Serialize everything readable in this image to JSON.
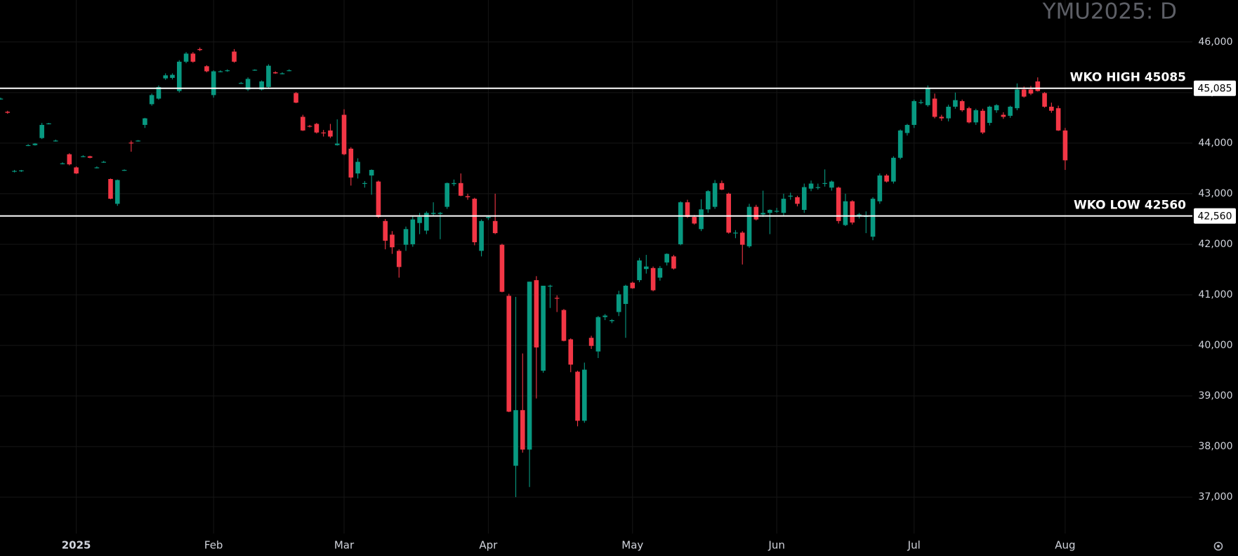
{
  "chart_data": {
    "type": "candlestick",
    "title": "YMU2025: D",
    "up_color": "#089981",
    "down_color": "#f23645",
    "grid": true,
    "ylim": [
      36280,
      46830
    ],
    "yticks": [
      {
        "value": 37000,
        "label": "37,000"
      },
      {
        "value": 38000,
        "label": "38,000"
      },
      {
        "value": 39000,
        "label": "39,000"
      },
      {
        "value": 40000,
        "label": "40,000"
      },
      {
        "value": 41000,
        "label": "41,000"
      },
      {
        "value": 42000,
        "label": "42,000"
      },
      {
        "value": 43000,
        "label": "43,000"
      },
      {
        "value": 44000,
        "label": "44,000"
      },
      {
        "value": 45000,
        "label": "45,000"
      },
      {
        "value": 46000,
        "label": "46,000"
      }
    ],
    "hlines": [
      {
        "label": "WKO HIGH 45085",
        "value": 45085,
        "tag": "45,085"
      },
      {
        "label": "WKO LOW 42560",
        "value": 42560,
        "tag": "42,560"
      }
    ],
    "categories": [
      null,
      null,
      null,
      null,
      null,
      null,
      null,
      null,
      null,
      null,
      null,
      "2025",
      null,
      null,
      null,
      null,
      null,
      null,
      null,
      null,
      null,
      null,
      null,
      null,
      null,
      null,
      null,
      null,
      null,
      null,
      null,
      "Feb",
      null,
      null,
      null,
      null,
      null,
      null,
      null,
      null,
      null,
      null,
      null,
      null,
      null,
      null,
      null,
      null,
      null,
      null,
      "Mar",
      null,
      null,
      null,
      null,
      null,
      null,
      null,
      null,
      null,
      null,
      null,
      null,
      null,
      null,
      null,
      null,
      null,
      null,
      null,
      null,
      "Apr",
      null,
      null,
      null,
      null,
      null,
      null,
      null,
      null,
      null,
      null,
      null,
      null,
      null,
      null,
      null,
      null,
      null,
      null,
      null,
      null,
      "May",
      null,
      null,
      null,
      null,
      null,
      null,
      null,
      null,
      null,
      null,
      null,
      null,
      null,
      null,
      null,
      null,
      null,
      null,
      null,
      null,
      "Jun",
      null,
      null,
      null,
      null,
      null,
      null,
      null,
      null,
      null,
      null,
      null,
      null,
      null,
      null,
      null,
      null,
      null,
      null,
      null,
      "Jul",
      null,
      null,
      null,
      null,
      null,
      null,
      null,
      null,
      null,
      null,
      null,
      null,
      null,
      null,
      null,
      null,
      null,
      null,
      null,
      null,
      null,
      "Aug"
    ],
    "ohlc": [
      [
        44880,
        44900,
        44860,
        44880
      ],
      [
        44620,
        44640,
        44580,
        44600
      ],
      [
        43440,
        43470,
        43420,
        43450
      ],
      [
        43450,
        43470,
        43430,
        43460
      ],
      [
        43950,
        43980,
        43940,
        43960
      ],
      [
        43960,
        44000,
        43950,
        43990
      ],
      [
        44100,
        44400,
        44080,
        44360
      ],
      [
        44380,
        44400,
        44370,
        44390
      ],
      [
        44050,
        44070,
        44030,
        44050
      ],
      [
        43600,
        43620,
        43580,
        43600
      ],
      [
        43780,
        43800,
        43560,
        43580
      ],
      [
        43520,
        43540,
        43390,
        43400
      ],
      [
        43740,
        43760,
        43720,
        43740
      ],
      [
        43740,
        43750,
        43700,
        43710
      ],
      [
        43520,
        43540,
        43500,
        43520
      ],
      [
        43620,
        43650,
        43610,
        43630
      ],
      [
        43290,
        43300,
        42890,
        42900
      ],
      [
        42800,
        43280,
        42760,
        43270
      ],
      [
        43460,
        43480,
        43450,
        43470
      ],
      [
        44010,
        44050,
        43830,
        44000
      ],
      [
        44040,
        44060,
        44030,
        44050
      ],
      [
        44360,
        44500,
        44300,
        44490
      ],
      [
        44770,
        44980,
        44740,
        44950
      ],
      [
        44880,
        45140,
        44860,
        45110
      ],
      [
        45280,
        45380,
        45250,
        45340
      ],
      [
        45290,
        45380,
        45260,
        45350
      ],
      [
        45030,
        45640,
        45000,
        45610
      ],
      [
        45610,
        45800,
        45580,
        45770
      ],
      [
        45770,
        45800,
        45590,
        45610
      ],
      [
        45860,
        45890,
        45820,
        45840
      ],
      [
        45520,
        45540,
        45400,
        45420
      ],
      [
        44950,
        45440,
        44900,
        45420
      ],
      [
        45420,
        45440,
        45400,
        45420
      ],
      [
        45430,
        45460,
        45410,
        45440
      ],
      [
        45810,
        45860,
        45590,
        45610
      ],
      [
        45190,
        45210,
        45170,
        45190
      ],
      [
        45060,
        45300,
        45030,
        45270
      ],
      [
        45440,
        45460,
        45430,
        45450
      ],
      [
        45060,
        45240,
        45040,
        45220
      ],
      [
        45110,
        45560,
        45080,
        45530
      ],
      [
        45400,
        45420,
        45370,
        45380
      ],
      [
        45380,
        45400,
        45360,
        45380
      ],
      [
        45440,
        45460,
        45420,
        45440
      ],
      [
        44990,
        45010,
        44790,
        44800
      ],
      [
        44520,
        44560,
        44240,
        44250
      ],
      [
        44340,
        44360,
        44310,
        44330
      ],
      [
        44380,
        44400,
        44190,
        44210
      ],
      [
        44210,
        44260,
        44130,
        44200
      ],
      [
        44250,
        44380,
        44100,
        44130
      ],
      [
        43960,
        44470,
        43950,
        43990
      ],
      [
        44560,
        44670,
        43760,
        43780
      ],
      [
        43890,
        43920,
        43160,
        43320
      ],
      [
        43400,
        43700,
        43300,
        43630
      ],
      [
        43200,
        43250,
        43120,
        43210
      ],
      [
        43360,
        43480,
        42980,
        43470
      ],
      [
        43240,
        43260,
        42520,
        42540
      ],
      [
        42460,
        42500,
        41900,
        42070
      ],
      [
        42190,
        42260,
        41810,
        41940
      ],
      [
        41870,
        41900,
        41340,
        41550
      ],
      [
        41990,
        42350,
        41870,
        42300
      ],
      [
        42000,
        42560,
        41950,
        42490
      ],
      [
        42420,
        42620,
        42200,
        42540
      ],
      [
        42270,
        42650,
        42200,
        42620
      ],
      [
        42600,
        42830,
        42560,
        42620
      ],
      [
        42600,
        42640,
        42100,
        42620
      ],
      [
        42740,
        43220,
        42700,
        43210
      ],
      [
        43190,
        43280,
        43150,
        43210
      ],
      [
        43210,
        43400,
        42950,
        42960
      ],
      [
        42950,
        43000,
        42880,
        42930
      ],
      [
        42900,
        42920,
        41980,
        42040
      ],
      [
        41870,
        42490,
        41760,
        42460
      ],
      [
        42520,
        42560,
        42480,
        42540
      ],
      [
        42460,
        43000,
        42200,
        42220
      ],
      [
        41990,
        42010,
        41050,
        41060
      ],
      [
        40980,
        41020,
        38680,
        38690
      ],
      [
        37620,
        40960,
        37000,
        38720
      ],
      [
        38720,
        39840,
        37880,
        37940
      ],
      [
        37940,
        41260,
        37200,
        41260
      ],
      [
        41290,
        41370,
        38950,
        39960
      ],
      [
        39500,
        41180,
        39460,
        41180
      ],
      [
        41180,
        41200,
        40740,
        41180
      ],
      [
        40940,
        40990,
        40660,
        40930
      ],
      [
        40700,
        40720,
        40080,
        40090
      ],
      [
        40120,
        40140,
        39470,
        39620
      ],
      [
        39480,
        39500,
        38400,
        38510
      ],
      [
        38510,
        39660,
        38470,
        39520
      ],
      [
        40150,
        40190,
        39930,
        39990
      ],
      [
        39880,
        40580,
        39750,
        40560
      ],
      [
        40560,
        40620,
        40500,
        40590
      ],
      [
        40480,
        40520,
        40440,
        40500
      ],
      [
        40660,
        41080,
        40580,
        41010
      ],
      [
        40820,
        41200,
        40150,
        41180
      ],
      [
        41240,
        41260,
        41120,
        41130
      ],
      [
        41290,
        41730,
        41250,
        41680
      ],
      [
        41510,
        41790,
        41420,
        41560
      ],
      [
        41530,
        41560,
        41070,
        41090
      ],
      [
        41340,
        41570,
        41280,
        41530
      ],
      [
        41640,
        41820,
        41580,
        41810
      ],
      [
        41760,
        41790,
        41500,
        41520
      ],
      [
        42000,
        42850,
        41980,
        42830
      ],
      [
        42830,
        42880,
        42520,
        42540
      ],
      [
        42540,
        42580,
        42390,
        42410
      ],
      [
        42300,
        42890,
        42260,
        42690
      ],
      [
        42690,
        43070,
        42620,
        43050
      ],
      [
        42740,
        43270,
        42700,
        43210
      ],
      [
        43210,
        43260,
        43070,
        43080
      ],
      [
        43000,
        43020,
        42210,
        42230
      ],
      [
        42230,
        42280,
        42120,
        42230
      ],
      [
        42230,
        42260,
        41600,
        41990
      ],
      [
        41960,
        42800,
        41930,
        42740
      ],
      [
        42740,
        42780,
        42470,
        42490
      ],
      [
        42590,
        43060,
        42540,
        42620
      ],
      [
        42620,
        42690,
        42200,
        42680
      ],
      [
        42650,
        42720,
        42620,
        42660
      ],
      [
        42620,
        43000,
        42560,
        42900
      ],
      [
        42960,
        43020,
        42880,
        42960
      ],
      [
        42930,
        42960,
        42750,
        42800
      ],
      [
        42680,
        43200,
        42620,
        43130
      ],
      [
        43100,
        43260,
        43050,
        43200
      ],
      [
        43130,
        43200,
        43080,
        43130
      ],
      [
        43200,
        43480,
        43140,
        43210
      ],
      [
        43120,
        43260,
        43060,
        43240
      ],
      [
        43120,
        43140,
        42410,
        42460
      ],
      [
        42380,
        43000,
        42360,
        42850
      ],
      [
        42850,
        42870,
        42390,
        42430
      ],
      [
        42590,
        42620,
        42510,
        42590
      ],
      [
        42540,
        42650,
        42220,
        42560
      ],
      [
        42150,
        42930,
        42080,
        42900
      ],
      [
        42850,
        43400,
        42800,
        43360
      ],
      [
        43360,
        43390,
        43220,
        43240
      ],
      [
        43240,
        43740,
        43200,
        43710
      ],
      [
        43710,
        44270,
        43680,
        44250
      ],
      [
        44200,
        44380,
        44150,
        44360
      ],
      [
        44360,
        44860,
        44300,
        44830
      ],
      [
        44800,
        44860,
        44770,
        44810
      ],
      [
        44750,
        45140,
        44720,
        45080
      ],
      [
        44880,
        44980,
        44490,
        44520
      ],
      [
        44520,
        44560,
        44440,
        44490
      ],
      [
        44490,
        44760,
        44430,
        44720
      ],
      [
        44720,
        45000,
        44680,
        44850
      ],
      [
        44830,
        44860,
        44620,
        44650
      ],
      [
        44690,
        44720,
        44390,
        44410
      ],
      [
        44410,
        44680,
        44360,
        44650
      ],
      [
        44640,
        44680,
        44180,
        44210
      ],
      [
        44400,
        44740,
        44350,
        44720
      ],
      [
        44650,
        44770,
        44600,
        44750
      ],
      [
        44560,
        44610,
        44480,
        44520
      ],
      [
        44540,
        44740,
        44500,
        44720
      ],
      [
        44690,
        45180,
        44650,
        45060
      ],
      [
        45060,
        45120,
        44900,
        44920
      ],
      [
        45060,
        45130,
        44950,
        44980
      ],
      [
        45220,
        45300,
        45020,
        45030
      ],
      [
        44990,
        45010,
        44700,
        44720
      ],
      [
        44720,
        44800,
        44600,
        44640
      ],
      [
        44690,
        44740,
        44240,
        44250
      ],
      [
        44250,
        44300,
        43470,
        43660
      ]
    ]
  }
}
